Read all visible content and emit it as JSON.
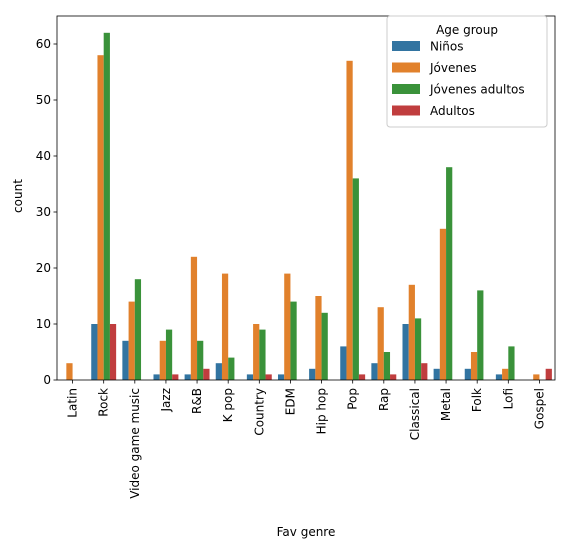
{
  "chart_data": {
    "type": "bar",
    "xlabel": "Fav genre",
    "ylabel": "count",
    "ylim": [
      0,
      65
    ],
    "yticks": [
      0,
      10,
      20,
      30,
      40,
      50,
      60
    ],
    "grid": false,
    "legend": {
      "title": "Age group",
      "placement": "top-right"
    },
    "categories": [
      "Latin",
      "Rock",
      "Video game music",
      "Jazz",
      "R&B",
      "K pop",
      "Country",
      "EDM",
      "Hip hop",
      "Pop",
      "Rap",
      "Classical",
      "Metal",
      "Folk",
      "Lofi",
      "Gospel"
    ],
    "series": [
      {
        "name": "Niños",
        "color": "#3274a1",
        "values": [
          0,
          10,
          7,
          1,
          1,
          3,
          1,
          1,
          2,
          6,
          3,
          10,
          2,
          2,
          1,
          0
        ]
      },
      {
        "name": "Jóvenes",
        "color": "#e1812c",
        "values": [
          3,
          58,
          14,
          7,
          22,
          19,
          10,
          19,
          15,
          57,
          13,
          17,
          27,
          5,
          2,
          1
        ]
      },
      {
        "name": "Jóvenes adultos",
        "color": "#3a923a",
        "values": [
          0,
          62,
          18,
          9,
          7,
          4,
          9,
          14,
          12,
          36,
          5,
          11,
          38,
          16,
          6,
          0
        ]
      },
      {
        "name": "Adultos",
        "color": "#c03d3e",
        "values": [
          0,
          10,
          0,
          1,
          2,
          0,
          1,
          0,
          0,
          1,
          1,
          3,
          0,
          0,
          0,
          2
        ]
      }
    ]
  }
}
